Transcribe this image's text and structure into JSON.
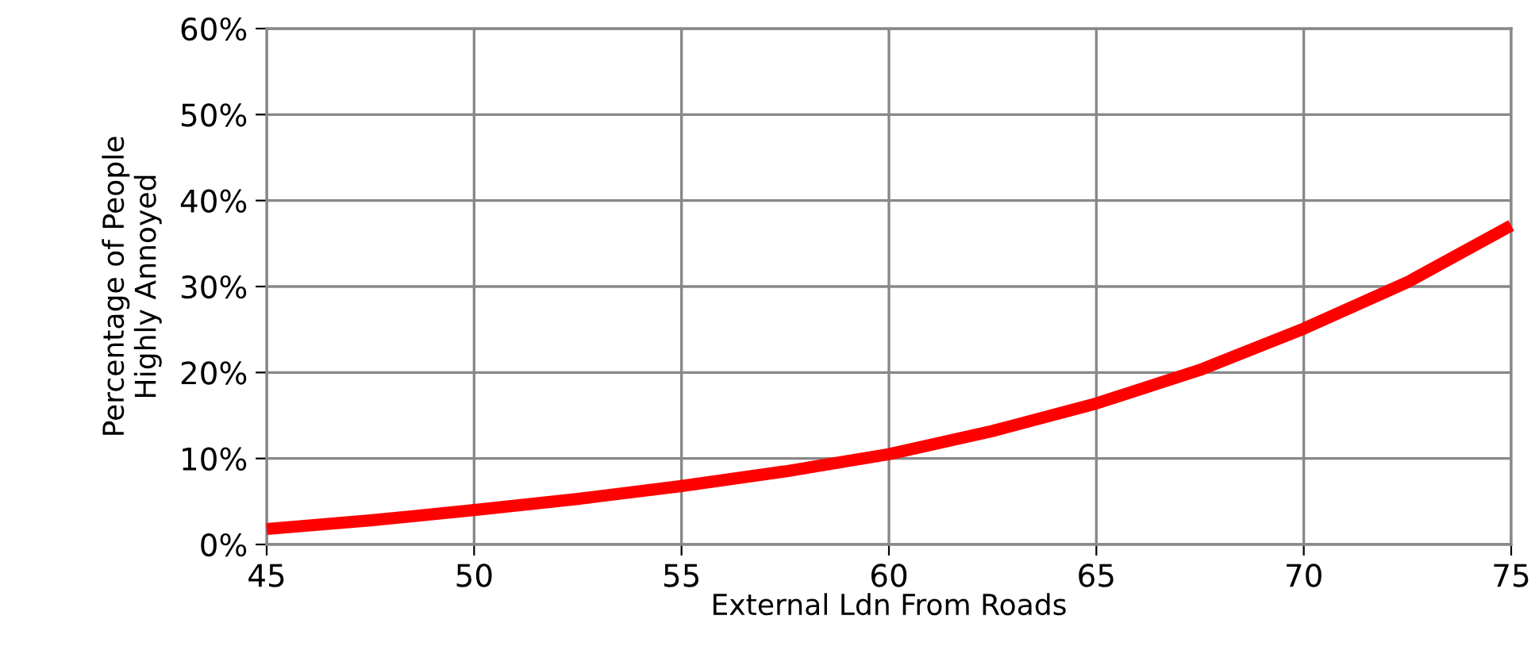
{
  "chart_data": {
    "type": "line",
    "xlabel": "External Ldn From Roads",
    "ylabel": "Percentage of People\nHighly Annoyed",
    "x": [
      45,
      47.5,
      50,
      52.5,
      55,
      57.5,
      60,
      62.5,
      65,
      67.5,
      70,
      72.5,
      75
    ],
    "series": [
      {
        "color": "#ff0000",
        "values": [
          1.8,
          2.8,
          4.0,
          5.3,
          6.8,
          8.5,
          10.5,
          13.2,
          16.4,
          20.3,
          25.1,
          30.5,
          37.1
        ]
      }
    ],
    "xlim": [
      45,
      75
    ],
    "xticks": [
      45,
      50,
      55,
      60,
      65,
      70,
      75
    ],
    "ylim": [
      0,
      60
    ],
    "yticks": [
      {
        "value": 0,
        "label": "0%"
      },
      {
        "value": 10,
        "label": "10%"
      },
      {
        "value": 20,
        "label": "20%"
      },
      {
        "value": 30,
        "label": "30%"
      },
      {
        "value": 40,
        "label": "40%"
      },
      {
        "value": 50,
        "label": "50%"
      },
      {
        "value": 60,
        "label": "60%"
      }
    ],
    "grid": true,
    "marker": "none",
    "line_style": "solid"
  }
}
